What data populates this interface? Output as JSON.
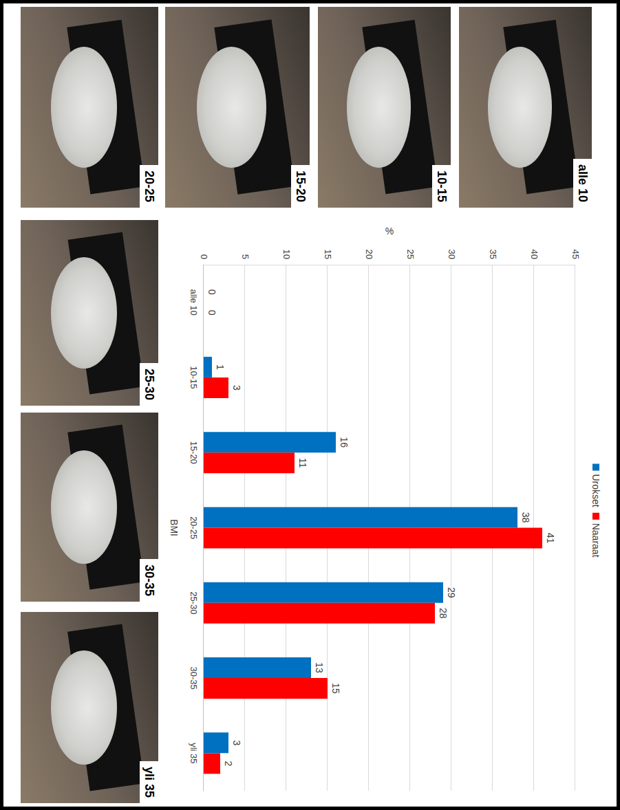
{
  "chart_data": {
    "type": "bar",
    "categories": [
      "alle 10",
      "10-15",
      "15-20",
      "20-25",
      "25-30",
      "30-35",
      "yli 35"
    ],
    "series": [
      {
        "name": "Urokset",
        "color": "#0070c0",
        "values": [
          0,
          1,
          16,
          38,
          29,
          13,
          3
        ]
      },
      {
        "name": "Naaraat",
        "color": "#ff0000",
        "values": [
          0,
          3,
          11,
          41,
          28,
          15,
          2
        ]
      }
    ],
    "x_label": "BMI",
    "y_label": "%",
    "ylim": [
      0,
      45
    ],
    "yticks": [
      0,
      5,
      10,
      15,
      20,
      25,
      30,
      35,
      40,
      45
    ],
    "grid": true,
    "legend": "top",
    "data_labels": true
  }
}
